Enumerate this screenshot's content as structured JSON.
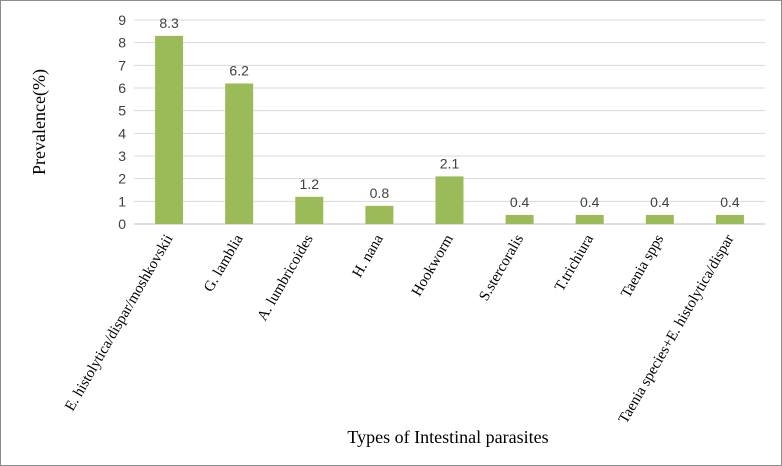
{
  "chart_data": {
    "type": "bar",
    "categories": [
      "E. histolytica/dispar/moshkovskii",
      "G. lamblia",
      "A. lumbricoides",
      "H. nana",
      "Hookworm",
      "S.stercoralis",
      "T.trichiura",
      "Taenia spps",
      "Taenia species+E. histolytica/dispar"
    ],
    "values": [
      8.3,
      6.2,
      1.2,
      0.8,
      2.1,
      0.4,
      0.4,
      0.4,
      0.4
    ],
    "data_labels": [
      "8.3",
      "6.2",
      "1.2",
      "0.8",
      "2.1",
      "0.4",
      "0.4",
      "0.4",
      "0.4"
    ],
    "ylabel": "Prevalence(%)",
    "xlabel": "Types of Intestinal parasites",
    "ylim": [
      0,
      9
    ],
    "yticks": [
      "0",
      "1",
      "2",
      "3",
      "4",
      "5",
      "6",
      "7",
      "8",
      "9"
    ],
    "grid": true,
    "bar_color": "#9BBB59",
    "grid_color": "#d9d9d9"
  }
}
